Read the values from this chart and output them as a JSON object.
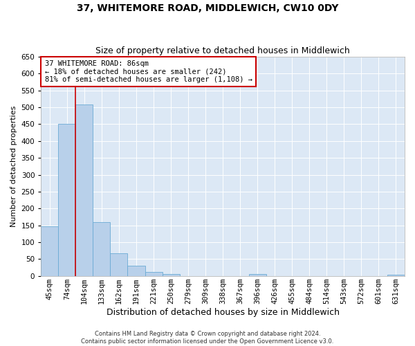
{
  "title": "37, WHITEMORE ROAD, MIDDLEWICH, CW10 0DY",
  "subtitle": "Size of property relative to detached houses in Middlewich",
  "xlabel": "Distribution of detached houses by size in Middlewich",
  "ylabel": "Number of detached properties",
  "categories": [
    "45sqm",
    "74sqm",
    "104sqm",
    "133sqm",
    "162sqm",
    "191sqm",
    "221sqm",
    "250sqm",
    "279sqm",
    "309sqm",
    "338sqm",
    "367sqm",
    "396sqm",
    "426sqm",
    "455sqm",
    "484sqm",
    "514sqm",
    "543sqm",
    "572sqm",
    "601sqm",
    "631sqm"
  ],
  "values": [
    148,
    450,
    508,
    160,
    67,
    30,
    12,
    6,
    0,
    0,
    0,
    0,
    5,
    0,
    0,
    0,
    0,
    0,
    0,
    0,
    3
  ],
  "bar_color": "#b8d0ea",
  "bar_edge_color": "#6aaad4",
  "vline_x": 1.5,
  "vline_color": "#cc0000",
  "annotation_text": "37 WHITEMORE ROAD: 86sqm\n← 18% of detached houses are smaller (242)\n81% of semi-detached houses are larger (1,108) →",
  "annotation_box_color": "#ffffff",
  "annotation_box_edge": "#cc0000",
  "ylim": [
    0,
    650
  ],
  "yticks": [
    0,
    50,
    100,
    150,
    200,
    250,
    300,
    350,
    400,
    450,
    500,
    550,
    600,
    650
  ],
  "bg_color": "#dce8f5",
  "grid_color": "#ffffff",
  "footer": "Contains HM Land Registry data © Crown copyright and database right 2024.\nContains public sector information licensed under the Open Government Licence v3.0.",
  "title_fontsize": 10,
  "subtitle_fontsize": 9,
  "xlabel_fontsize": 9,
  "ylabel_fontsize": 8,
  "tick_fontsize": 7.5,
  "footer_fontsize": 6,
  "annot_fontsize": 7.5
}
